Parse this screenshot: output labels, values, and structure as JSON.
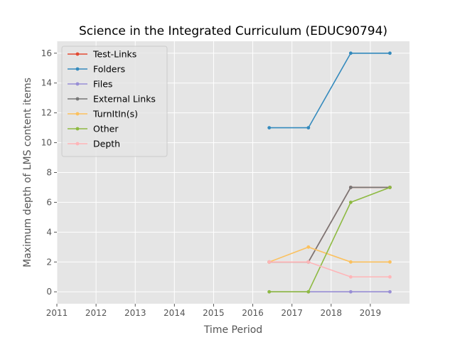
{
  "chart_data": {
    "type": "line",
    "title": "Science in the Integrated Curriculum (EDUC90794)",
    "xlabel": "Time Period",
    "ylabel": "Maximum depth of LMS content items",
    "xlim": [
      2011.0,
      2020.0
    ],
    "ylim": [
      -0.8,
      16.8
    ],
    "x_ticks": [
      2011,
      2012,
      2013,
      2014,
      2015,
      2016,
      2017,
      2018,
      2019
    ],
    "y_ticks": [
      0,
      2,
      4,
      6,
      8,
      10,
      12,
      14,
      16
    ],
    "grid": true,
    "legend_position": "top-left",
    "x": [
      2016.42,
      2017.42,
      2018.5,
      2019.5
    ],
    "series": [
      {
        "name": "Test-Links",
        "color": "#E24A33",
        "values": [
          2,
          2,
          7,
          7
        ]
      },
      {
        "name": "Folders",
        "color": "#348ABD",
        "values": [
          11,
          11,
          16,
          16
        ]
      },
      {
        "name": "Files",
        "color": "#988ED5",
        "values": [
          0,
          0,
          0,
          0
        ]
      },
      {
        "name": "External Links",
        "color": "#777777",
        "values": [
          2,
          2,
          7,
          7
        ]
      },
      {
        "name": "TurnItIn(s)",
        "color": "#FBC15E",
        "values": [
          2,
          3,
          2,
          2
        ]
      },
      {
        "name": "Other",
        "color": "#8EBA42",
        "values": [
          0,
          0,
          6,
          7
        ]
      },
      {
        "name": "Depth",
        "color": "#FFB5B8",
        "values": [
          2,
          2,
          1,
          1
        ]
      }
    ]
  }
}
